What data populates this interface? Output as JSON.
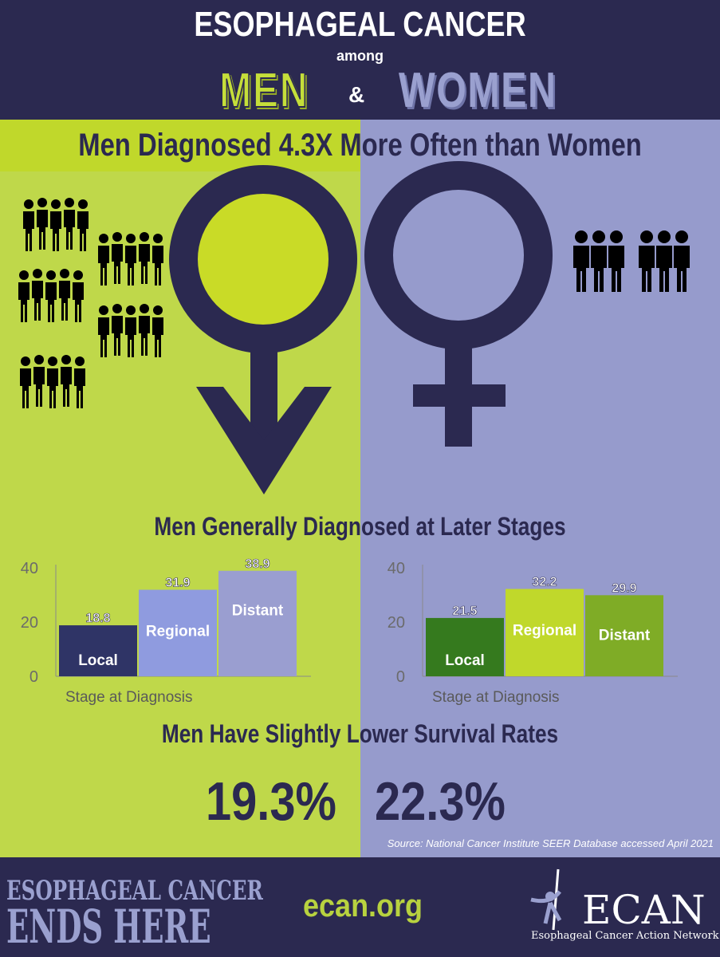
{
  "header": {
    "title": "ESOPHAGEAL CANCER",
    "among": "among",
    "men": "MEN",
    "amp": "&",
    "women": "WOMEN"
  },
  "headline": "Men Diagnosed 4.3X More Often than Women",
  "stages_heading": "Men Generally Diagnosed at Later Stages",
  "survival": {
    "heading": "Men Have Slightly Lower Survival Rates",
    "men_rate": "19.3%",
    "women_rate": "22.3%"
  },
  "source": "Source: National Cancer Institute SEER Database accessed April 2021",
  "footer": {
    "line1": "ESOPHAGEAL CANCER",
    "line2": "ENDS HERE",
    "site": "ecan.org",
    "logo_word": "ECAN",
    "logo_sub": "Esophageal Cancer Action Network"
  },
  "icons": {
    "male_symbol": "male-symbol-icon",
    "female_symbol": "female-symbol-icon",
    "people_group": "people-group-icon"
  },
  "colors": {
    "navy": "#2b2950",
    "lime": "#bfd84a",
    "lavender": "#969bcc"
  },
  "chart_data": [
    {
      "type": "bar",
      "group": "men",
      "categories": [
        "Local",
        "Regional",
        "Distant"
      ],
      "values": [
        18.8,
        31.9,
        38.9
      ],
      "value_labels": [
        "18.8",
        "31.9",
        "38.9"
      ],
      "colors": [
        "#2f3466",
        "#8f9bdf",
        "#9a9ed0"
      ],
      "xlabel": "Stage at Diagnosis",
      "ylim": [
        0,
        40
      ],
      "yticks": [
        "0",
        "20",
        "40"
      ]
    },
    {
      "type": "bar",
      "group": "women",
      "categories": [
        "Local",
        "Regional",
        "Distant"
      ],
      "values": [
        21.5,
        32.2,
        29.9
      ],
      "value_labels": [
        "21.5",
        "32.2",
        "29.9"
      ],
      "colors": [
        "#357a1e",
        "#c0d82b",
        "#7fac26"
      ],
      "xlabel": "Stage at Diagnosis",
      "ylim": [
        0,
        40
      ],
      "yticks": [
        "0",
        "20",
        "40"
      ]
    }
  ]
}
